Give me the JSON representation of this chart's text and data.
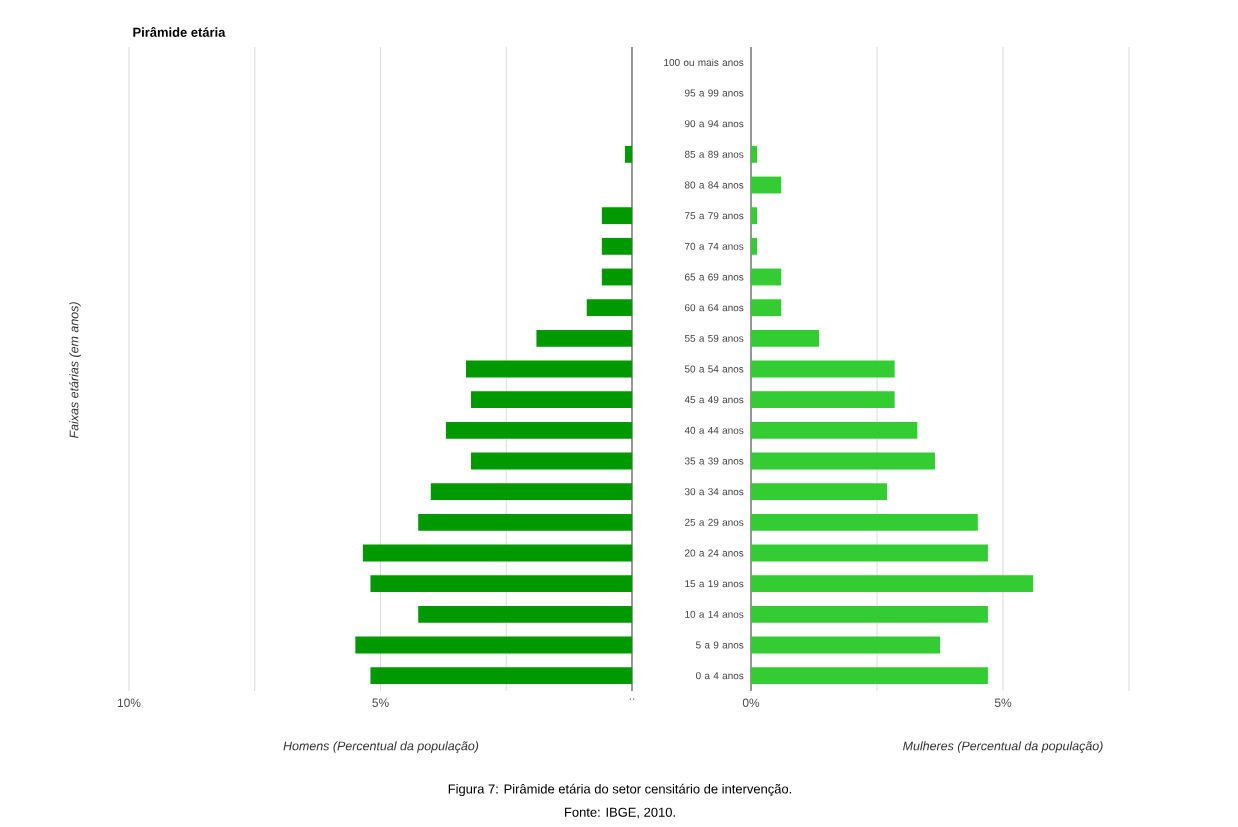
{
  "chart_data": [
    {
      "type": "bar",
      "orientation": "horizontal",
      "title": "Pirâmide etária",
      "ylabel": "Faixas etárias (em anos)",
      "xlabel": "Homens (Percentual da população)",
      "categories": [
        "100 ou mais anos",
        "95 a 99 anos",
        "90 a 94 anos",
        "85 a 89 anos",
        "80 a 84 anos",
        "75 a 79 anos",
        "70 a 74 anos",
        "65 a 69 anos",
        "60 a 64 anos",
        "55 a 59 anos",
        "50 a 54 anos",
        "45 a 49 anos",
        "40 a 44 anos",
        "35 a 39 anos",
        "30 a 34 anos",
        "25 a 29 anos",
        "20 a 24 anos",
        "15 a 19 anos",
        "10 a 14 anos",
        "5 a 9 anos",
        "0 a 4 anos"
      ],
      "values": [
        0,
        0,
        0,
        0.14,
        0,
        0.6,
        0.6,
        0.6,
        0.9,
        1.9,
        3.3,
        3.2,
        3.7,
        3.2,
        4.0,
        4.25,
        5.35,
        5.2,
        4.25,
        5.5,
        5.2
      ],
      "color": "#009900",
      "xlim": [
        10,
        0
      ],
      "xticks": [
        {
          "value": 10,
          "label": "10%"
        },
        {
          "value": 7.5,
          "label": null
        },
        {
          "value": 5,
          "label": "5%"
        },
        {
          "value": 2.5,
          "label": null
        },
        {
          "value": 0,
          "label": ".."
        }
      ],
      "grid": "x",
      "annotations": [
        "Figura 7: Pirâmide etária do setor censitário de intervenção.",
        "Fonte: IBGE, 2010."
      ]
    },
    {
      "type": "bar",
      "orientation": "horizontal",
      "xlabel": "Mulheres (Percentual da população)",
      "tick_labels": "x",
      "categories": [
        null,
        null,
        null,
        null,
        null,
        null,
        null,
        null,
        null,
        null,
        null,
        null,
        null,
        null,
        null,
        null,
        null,
        null,
        null,
        null,
        null
      ],
      "values": [
        0,
        0,
        0,
        0.12,
        0.6,
        0.12,
        0.12,
        0.6,
        0.6,
        1.35,
        2.85,
        2.85,
        3.3,
        3.65,
        2.7,
        4.5,
        4.7,
        5.6,
        4.7,
        3.75,
        4.7
      ],
      "color": "#33cc33",
      "xlim": [
        0,
        7.5
      ],
      "xticks": [
        {
          "value": 0,
          "label": "0%"
        },
        {
          "value": 2.5,
          "label": null
        },
        {
          "value": 5,
          "label": "5%"
        },
        {
          "value": 7.5,
          "label": null
        }
      ],
      "grid": "x"
    }
  ]
}
